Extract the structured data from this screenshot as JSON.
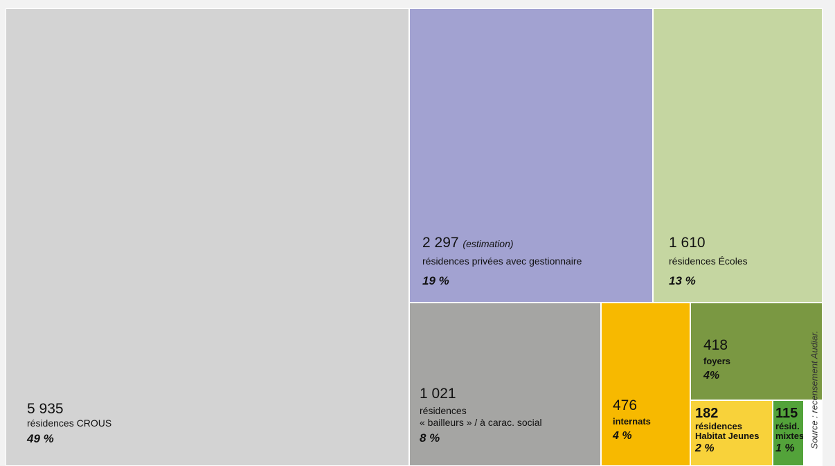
{
  "chart_data": {
    "type": "treemap",
    "items": [
      {
        "id": "crous",
        "value": "5 935",
        "label": "résidences CROUS",
        "pct": "49 %",
        "note": "",
        "color": "#d3d3d3",
        "text_color": "#111111"
      },
      {
        "id": "privees",
        "value": "2 297",
        "label": "résidences privées avec gestionnaire",
        "pct": "19 %",
        "note": "(estimation)",
        "color": "#a2a2d1",
        "text_color": "#111111"
      },
      {
        "id": "ecoles",
        "value": "1 610",
        "label": "résidences Écoles",
        "pct": "13 %",
        "note": "",
        "color": "#c5d6a1",
        "text_color": "#111111"
      },
      {
        "id": "bailleurs",
        "value": "1 021",
        "label": "résidences\n« bailleurs » / à carac. social",
        "pct": "8 %",
        "note": "",
        "color": "#a5a5a3",
        "text_color": "#111111"
      },
      {
        "id": "internats",
        "value": "476",
        "label": "internats",
        "pct": "4 %",
        "note": "",
        "color": "#f7b900",
        "text_color": "#111111"
      },
      {
        "id": "foyers",
        "value": "418",
        "label": "foyers",
        "pct": "4%",
        "note": "",
        "color": "#7a9842",
        "text_color": "#111111"
      },
      {
        "id": "hj",
        "value": "182",
        "label": "résidences\nHabitat Jeunes",
        "pct": "2 %",
        "note": "",
        "color": "#f8d23a",
        "text_color": "#111111"
      },
      {
        "id": "mixtes",
        "value": "115",
        "label": "résid.\nmixtes",
        "pct": "1 %",
        "note": "",
        "color": "#53a33a",
        "text_color": "#111111"
      }
    ],
    "source": "Source : recensement Audiar."
  }
}
